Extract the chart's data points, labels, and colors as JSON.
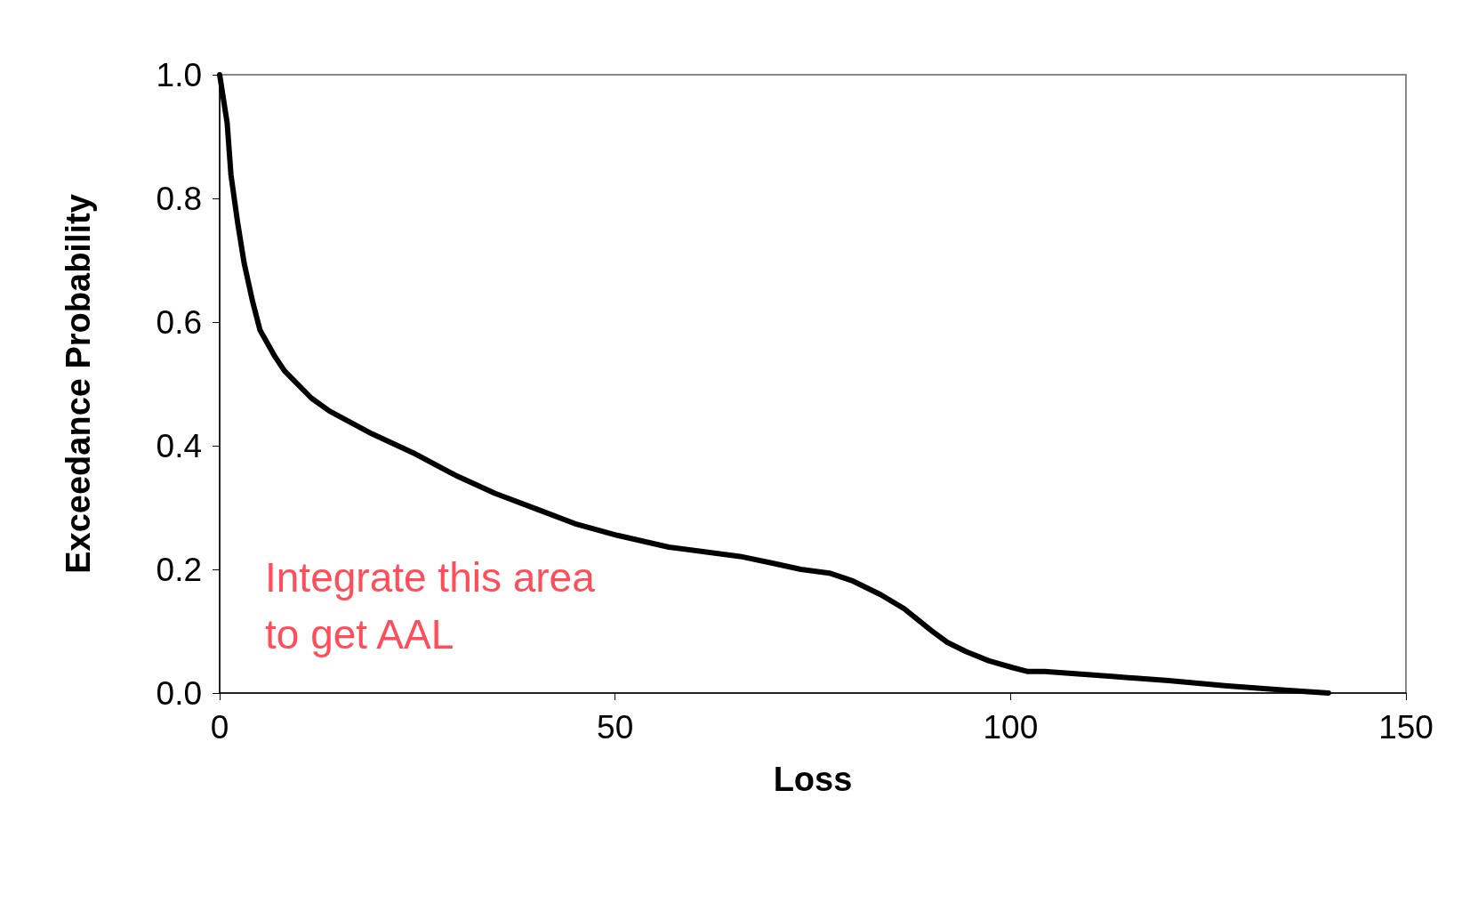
{
  "chart_data": {
    "type": "line",
    "xlabel": "Loss",
    "ylabel": "Exceedance Probability",
    "annotations": [
      "Integrate this area\nto get AAL"
    ],
    "series": [
      {
        "color": "#000000",
        "x": [
          0,
          0.95,
          1.43,
          2.26,
          3.1,
          4.17,
          5.1,
          7.0,
          8.2,
          11.6,
          13.9,
          19.3,
          24.7,
          30.0,
          34.8,
          40.2,
          44.9,
          50.3,
          56.8,
          65.8,
          69.9,
          73.5,
          77.1,
          80.1,
          83.6,
          86.6,
          90.0,
          92.0,
          94.4,
          97.3,
          100.3,
          102.1,
          104.3,
          112.8,
          120.0,
          127.1,
          134.3,
          140.2
        ],
        "values": [
          1.0,
          0.922,
          0.838,
          0.762,
          0.695,
          0.633,
          0.587,
          0.544,
          0.521,
          0.477,
          0.456,
          0.419,
          0.387,
          0.351,
          0.323,
          0.297,
          0.274,
          0.255,
          0.236,
          0.221,
          0.21,
          0.2,
          0.194,
          0.181,
          0.159,
          0.136,
          0.101,
          0.082,
          0.067,
          0.052,
          0.041,
          0.035,
          0.035,
          0.027,
          0.02,
          0.012,
          0.005,
          0.0
        ]
      }
    ],
    "xlim": [
      0,
      150
    ],
    "xticks": [
      0,
      50,
      100,
      150
    ],
    "ylim": [
      0,
      1
    ],
    "yticks": [
      {
        "value": 0,
        "label": "0.0"
      },
      {
        "value": 0.2,
        "label": "0.2"
      },
      {
        "value": 0.4,
        "label": "0.4"
      },
      {
        "value": 0.6,
        "label": "0.6"
      },
      {
        "value": 0.8,
        "label": "0.8"
      },
      {
        "value": 1,
        "label": "1.0"
      }
    ],
    "grid": false,
    "marker": "none",
    "line_style": "solid"
  }
}
